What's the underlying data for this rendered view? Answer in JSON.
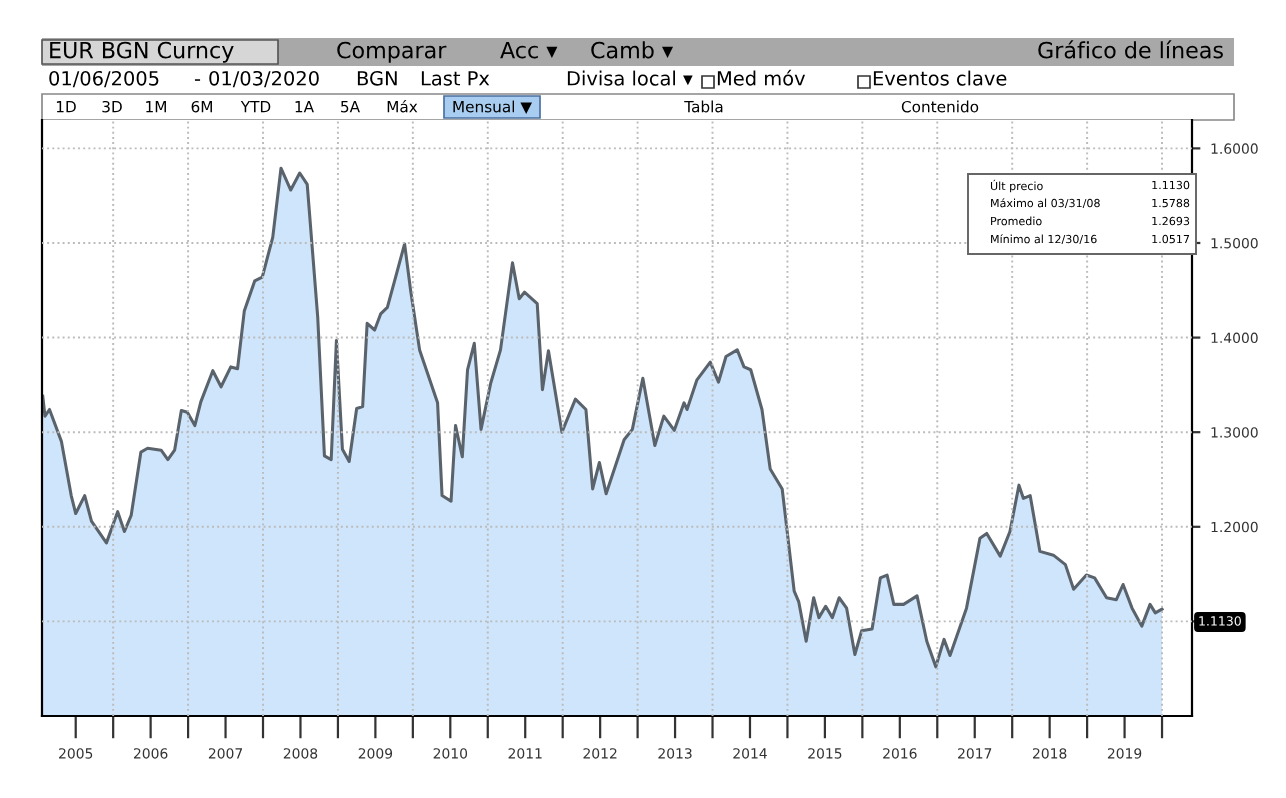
{
  "chart_data": {
    "type": "area",
    "title": "EUR BGN Curncy",
    "subtitle": "Gráfico de líneas",
    "annotations": [
      "Comparar",
      "Acc ▾",
      "Camb ▾",
      "01/06/2005",
      "-",
      "01/03/2020",
      "BGN",
      "Last Px",
      "Divisa local ▾",
      "Med móv",
      "Eventos clave",
      "1D",
      "3D",
      "1M",
      "6M",
      "YTD",
      "1A",
      "5A",
      "Máx",
      "Mensual ▼",
      "Tabla",
      "Contenido",
      "Últ precio",
      "1.1130",
      "Máximo al 03/31/08",
      "1.5788",
      "Promedio",
      "1.2693",
      "Mínimo al 12/30/16",
      "1.0517",
      "1.1130"
    ],
    "x": [
      2005.06,
      2005.09,
      2005.15,
      2005.31,
      2005.44,
      2005.5,
      2005.62,
      2005.71,
      2005.91,
      2006.06,
      2006.15,
      2006.24,
      2006.37,
      2006.46,
      2006.64,
      2006.73,
      2006.82,
      2006.91,
      2006.99,
      2007.09,
      2007.17,
      2007.33,
      2007.44,
      2007.57,
      2007.66,
      2007.75,
      2007.89,
      2007.99,
      2008.13,
      2008.24,
      2008.37,
      2008.49,
      2008.59,
      2008.73,
      2008.82,
      2008.91,
      2008.98,
      2009.06,
      2009.15,
      2009.25,
      2009.33,
      2009.39,
      2009.49,
      2009.57,
      2009.66,
      2009.77,
      2009.89,
      2009.97,
      2010.09,
      2010.33,
      2010.39,
      2010.51,
      2010.57,
      2010.66,
      2010.73,
      2010.82,
      2010.91,
      2011.04,
      2011.17,
      2011.33,
      2011.42,
      2011.49,
      2011.66,
      2011.73,
      2011.81,
      2011.99,
      2012.17,
      2012.31,
      2012.4,
      2012.49,
      2012.58,
      2012.82,
      2012.93,
      2013.07,
      2013.23,
      2013.35,
      2013.49,
      2013.62,
      2013.66,
      2013.79,
      2013.97,
      2014.08,
      2014.18,
      2014.33,
      2014.42,
      2014.51,
      2014.66,
      2014.77,
      2014.93,
      2015.09,
      2015.15,
      2015.25,
      2015.35,
      2015.42,
      2015.51,
      2015.6,
      2015.69,
      2015.79,
      2015.9,
      2015.99,
      2016.13,
      2016.24,
      2016.33,
      2016.42,
      2016.55,
      2016.73,
      2016.86,
      2016.98,
      2017.09,
      2017.17,
      2017.39,
      2017.57,
      2017.66,
      2017.84,
      2017.97,
      2018.09,
      2018.15,
      2018.24,
      2018.37,
      2018.55,
      2018.71,
      2018.82,
      2018.99,
      2019.1,
      2019.26,
      2019.39,
      2019.48,
      2019.6,
      2019.73,
      2019.84,
      2019.91,
      2020.0
    ],
    "series": [
      {
        "color": "#cfe5fb",
        "values": [
          1.338,
          1.317,
          1.324,
          1.29,
          1.233,
          1.214,
          1.233,
          1.206,
          1.183,
          1.216,
          1.195,
          1.212,
          1.279,
          1.283,
          1.281,
          1.271,
          1.281,
          1.323,
          1.321,
          1.307,
          1.332,
          1.365,
          1.348,
          1.369,
          1.367,
          1.428,
          1.46,
          1.464,
          1.506,
          1.579,
          1.556,
          1.574,
          1.562,
          1.422,
          1.275,
          1.271,
          1.397,
          1.282,
          1.269,
          1.325,
          1.327,
          1.415,
          1.408,
          1.425,
          1.432,
          1.464,
          1.499,
          1.45,
          1.387,
          1.331,
          1.233,
          1.227,
          1.307,
          1.274,
          1.366,
          1.394,
          1.303,
          1.352,
          1.387,
          1.479,
          1.441,
          1.448,
          1.436,
          1.345,
          1.386,
          1.3,
          1.335,
          1.324,
          1.24,
          1.268,
          1.235,
          1.292,
          1.303,
          1.357,
          1.286,
          1.317,
          1.302,
          1.331,
          1.324,
          1.355,
          1.374,
          1.353,
          1.38,
          1.387,
          1.369,
          1.366,
          1.324,
          1.261,
          1.24,
          1.132,
          1.121,
          1.079,
          1.125,
          1.104,
          1.116,
          1.104,
          1.125,
          1.114,
          1.065,
          1.09,
          1.092,
          1.146,
          1.149,
          1.118,
          1.118,
          1.127,
          1.079,
          1.052,
          1.081,
          1.064,
          1.114,
          1.188,
          1.193,
          1.169,
          1.195,
          1.244,
          1.23,
          1.233,
          1.174,
          1.17,
          1.16,
          1.134,
          1.149,
          1.146,
          1.125,
          1.123,
          1.139,
          1.114,
          1.095,
          1.118,
          1.109,
          1.113
        ]
      }
    ],
    "xlim": [
      2005.05,
      2020.4
    ],
    "xticks": [
      {
        "value": 2005.5,
        "label": "2005"
      },
      {
        "value": 2006,
        "label": null
      },
      {
        "value": 2006.5,
        "label": "2006"
      },
      {
        "value": 2007,
        "label": null
      },
      {
        "value": 2007.5,
        "label": "2007"
      },
      {
        "value": 2008,
        "label": null
      },
      {
        "value": 2008.5,
        "label": "2008"
      },
      {
        "value": 2009,
        "label": null
      },
      {
        "value": 2009.5,
        "label": "2009"
      },
      {
        "value": 2010,
        "label": null
      },
      {
        "value": 2010.5,
        "label": "2010"
      },
      {
        "value": 2011,
        "label": null
      },
      {
        "value": 2011.5,
        "label": "2011"
      },
      {
        "value": 2012,
        "label": null
      },
      {
        "value": 2012.5,
        "label": "2012"
      },
      {
        "value": 2013,
        "label": null
      },
      {
        "value": 2013.5,
        "label": "2013"
      },
      {
        "value": 2014,
        "label": null
      },
      {
        "value": 2014.5,
        "label": "2014"
      },
      {
        "value": 2015,
        "label": null
      },
      {
        "value": 2015.5,
        "label": "2015"
      },
      {
        "value": 2016,
        "label": null
      },
      {
        "value": 2016.5,
        "label": "2016"
      },
      {
        "value": 2017,
        "label": null
      },
      {
        "value": 2017.5,
        "label": "2017"
      },
      {
        "value": 2018,
        "label": null
      },
      {
        "value": 2018.5,
        "label": "2018"
      },
      {
        "value": 2019,
        "label": null
      },
      {
        "value": 2019.5,
        "label": "2019"
      },
      {
        "value": 2020,
        "label": null
      }
    ],
    "ylim": [
      1.0,
      1.63
    ],
    "yticks": [
      {
        "value": 1.1,
        "label": null
      },
      {
        "value": 1.2,
        "label": "1.2000"
      },
      {
        "value": 1.3,
        "label": "1.3000"
      },
      {
        "value": 1.4,
        "label": "1.4000"
      },
      {
        "value": 1.5,
        "label": "1.5000"
      },
      {
        "value": 1.6,
        "label": "1.6000"
      }
    ],
    "grid": true
  }
}
